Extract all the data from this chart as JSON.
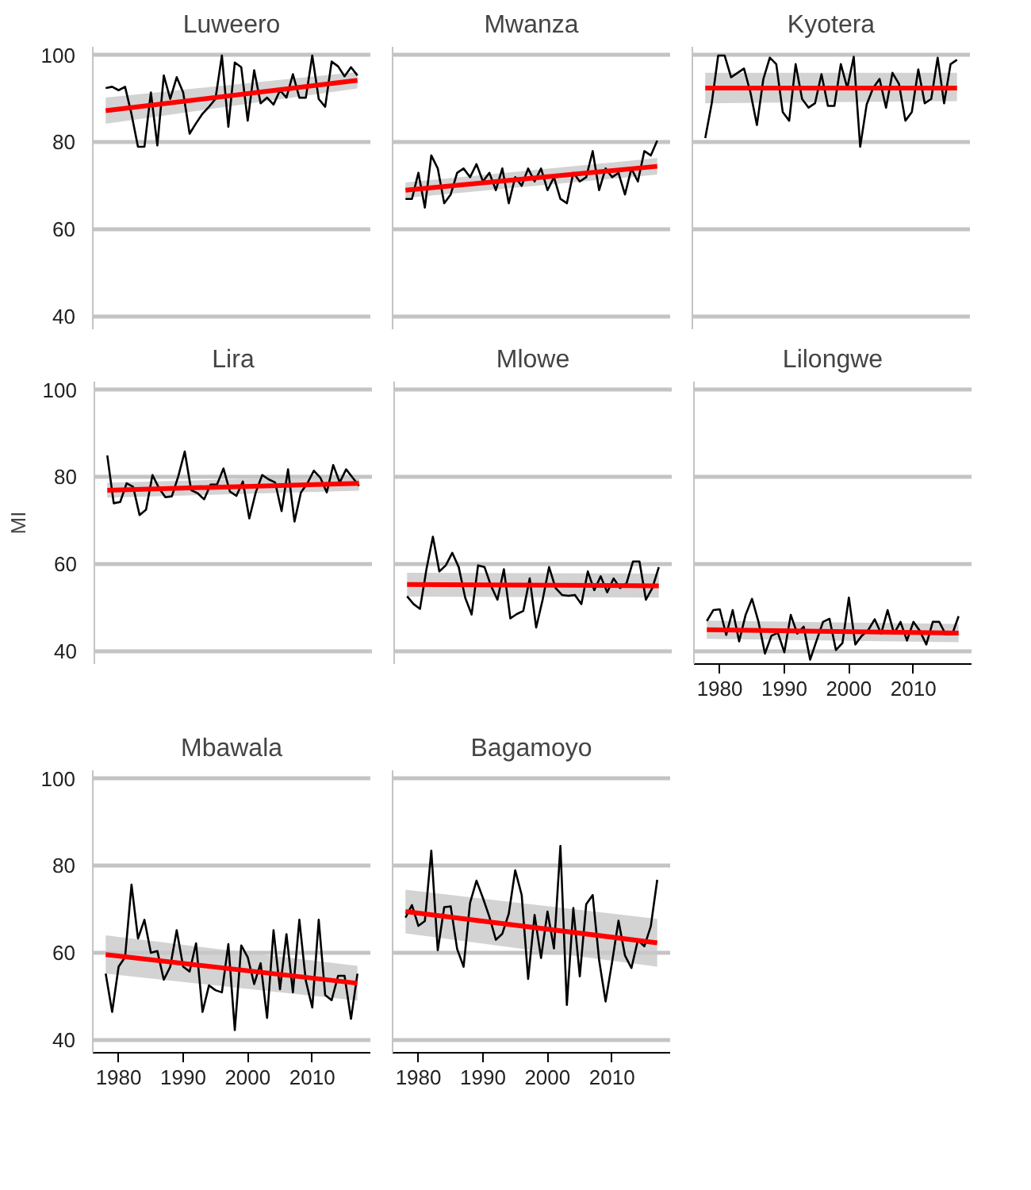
{
  "chart_data": [
    {
      "type": "line",
      "title": "Luweero",
      "xlim": [
        1976,
        2019
      ],
      "ylim": [
        37,
        102
      ],
      "xticks": [
        1980,
        1990,
        2000,
        2010
      ],
      "yticks": [
        40,
        60,
        80,
        100
      ],
      "grid": "y",
      "tick_labels": "y",
      "series": [
        {
          "color": "#000000",
          "x": [
            1978,
            1979,
            1980,
            1981,
            1982,
            1983,
            1984,
            1985,
            1986,
            1987,
            1988,
            1989,
            1990,
            1991,
            1992,
            1993,
            1994,
            1995,
            1996,
            1997,
            1998,
            1999,
            2000,
            2001,
            2002,
            2003,
            2004,
            2005,
            2006,
            2007,
            2008,
            2009,
            2010,
            2011,
            2012,
            2013,
            2014,
            2015,
            2016,
            2017
          ],
          "values": [
            92.5,
            92.8,
            92,
            92.8,
            86.5,
            79,
            79,
            91.5,
            79.3,
            95.4,
            90,
            95,
            91.5,
            82,
            84.4,
            86.6,
            88.2,
            90,
            100,
            83.6,
            98.4,
            97.3,
            85,
            96.6,
            89,
            90.3,
            88.7,
            92,
            90.3,
            95.7,
            90.3,
            90.3,
            100,
            90,
            88.2,
            98.6,
            97.5,
            95.2,
            97.3,
            95.4
          ]
        },
        {
          "color": "#ff0000",
          "x": [
            1978,
            2017
          ],
          "values": [
            87.3,
            94.3
          ],
          "lower": [
            84.3,
            92.4
          ],
          "upper": [
            90.3,
            96.2
          ]
        }
      ]
    },
    {
      "type": "line",
      "title": "Mwanza",
      "xlim": [
        1976,
        2019
      ],
      "ylim": [
        37,
        102
      ],
      "xticks": [
        1980,
        1990,
        2000,
        2010
      ],
      "yticks": [
        40,
        60,
        80,
        100
      ],
      "grid": "y",
      "tick_labels": false,
      "series": [
        {
          "color": "#000000",
          "x": [
            1978,
            1979,
            1980,
            1981,
            1982,
            1983,
            1984,
            1985,
            1986,
            1987,
            1988,
            1989,
            1990,
            1991,
            1992,
            1993,
            1994,
            1995,
            1996,
            1997,
            1998,
            1999,
            2000,
            2001,
            2002,
            2003,
            2004,
            2005,
            2006,
            2007,
            2008,
            2009,
            2010,
            2011,
            2012,
            2013,
            2014,
            2015,
            2016,
            2017
          ],
          "values": [
            67,
            67,
            73,
            65,
            77,
            74,
            66,
            68,
            73,
            74,
            72,
            75,
            71,
            73,
            69,
            74,
            66,
            72,
            70,
            74,
            71,
            74,
            69,
            72,
            67,
            66,
            73,
            71,
            72,
            78,
            69,
            74,
            72,
            73,
            68,
            74,
            71,
            78,
            77,
            80.4
          ]
        },
        {
          "color": "#ff0000",
          "x": [
            1978,
            2017
          ],
          "values": [
            69,
            74.5
          ],
          "lower": [
            67.2,
            72.6
          ],
          "upper": [
            70.8,
            76.4
          ]
        }
      ]
    },
    {
      "type": "line",
      "title": "Kyotera",
      "xlim": [
        1976,
        2019
      ],
      "ylim": [
        37,
        102
      ],
      "xticks": [
        1980,
        1990,
        2000,
        2010
      ],
      "yticks": [
        40,
        60,
        80,
        100
      ],
      "grid": "y",
      "tick_labels": false,
      "series": [
        {
          "color": "#000000",
          "x": [
            1978,
            1979,
            1980,
            1981,
            1982,
            1983,
            1984,
            1985,
            1986,
            1987,
            1988,
            1989,
            1990,
            1991,
            1992,
            1993,
            1994,
            1995,
            1996,
            1997,
            1998,
            1999,
            2000,
            2001,
            2002,
            2003,
            2004,
            2005,
            2006,
            2007,
            2008,
            2009,
            2010,
            2011,
            2012,
            2013,
            2014,
            2015,
            2016,
            2017
          ],
          "values": [
            81,
            89,
            100,
            100,
            95,
            96,
            97,
            91.5,
            84,
            94.6,
            99.5,
            98,
            87,
            85,
            98,
            90,
            88,
            89,
            95.7,
            88.4,
            88.4,
            98,
            92.5,
            99.7,
            79,
            88.7,
            92.5,
            94.6,
            88,
            96,
            93.5,
            85,
            87,
            96.8,
            89,
            90,
            99.5,
            89,
            98,
            99
          ]
        },
        {
          "color": "#ff0000",
          "x": [
            1978,
            2017
          ],
          "values": [
            92.5,
            92.5
          ],
          "lower": [
            89,
            89.5
          ],
          "upper": [
            96,
            96
          ]
        }
      ]
    },
    {
      "type": "line",
      "title": "Lira",
      "ylabel": "MI",
      "xlim": [
        1976,
        2019
      ],
      "ylim": [
        37,
        102
      ],
      "xticks": [
        1980,
        1990,
        2000,
        2010
      ],
      "yticks": [
        40,
        60,
        80,
        100
      ],
      "grid": "y",
      "tick_labels": "y",
      "series": [
        {
          "color": "#000000",
          "x": [
            1978,
            1979,
            1980,
            1981,
            1982,
            1983,
            1984,
            1985,
            1986,
            1987,
            1988,
            1989,
            1990,
            1991,
            1992,
            1993,
            1994,
            1995,
            1996,
            1997,
            1998,
            1999,
            2000,
            2001,
            2002,
            2003,
            2004,
            2005,
            2006,
            2007,
            2008,
            2009,
            2010,
            2011,
            2012,
            2013,
            2014,
            2015,
            2016,
            2017
          ],
          "values": [
            85,
            74,
            74.3,
            78.6,
            77.8,
            71.3,
            72.5,
            80.5,
            77.5,
            75.4,
            75.6,
            80.2,
            85.9,
            77,
            76.3,
            74.9,
            78.3,
            78.3,
            82,
            76.7,
            75.7,
            79,
            70.5,
            76.5,
            80.5,
            79.5,
            78.8,
            72.2,
            81.8,
            69.8,
            76.5,
            78.6,
            81.5,
            79.9,
            76.5,
            82.8,
            78.8,
            81.8,
            79.9,
            78
          ]
        },
        {
          "color": "#ff0000",
          "x": [
            1978,
            2017
          ],
          "values": [
            77,
            78.6
          ],
          "lower": [
            75.3,
            76.9
          ],
          "upper": [
            78.7,
            80.3
          ]
        }
      ]
    },
    {
      "type": "line",
      "title": "Mlowe",
      "xlim": [
        1976,
        2019
      ],
      "ylim": [
        37,
        102
      ],
      "xticks": [
        1980,
        1990,
        2000,
        2010
      ],
      "yticks": [
        40,
        60,
        80,
        100
      ],
      "grid": "y",
      "tick_labels": false,
      "series": [
        {
          "color": "#000000",
          "x": [
            1978,
            1979,
            1980,
            1981,
            1982,
            1983,
            1984,
            1985,
            1986,
            1987,
            1988,
            1989,
            1990,
            1991,
            1992,
            1993,
            1994,
            1995,
            1996,
            1997,
            1998,
            1999,
            2000,
            2001,
            2002,
            2003,
            2004,
            2005,
            2006,
            2007,
            2008,
            2009,
            2010,
            2011,
            2012,
            2013,
            2014,
            2015,
            2016,
            2017
          ],
          "values": [
            52.6,
            50.8,
            49.7,
            58.8,
            66.3,
            58.3,
            59.7,
            62.6,
            59.3,
            52.3,
            48.4,
            59.7,
            59.3,
            55,
            51.8,
            58.8,
            47.5,
            48.5,
            49.2,
            56.7,
            45.4,
            51.8,
            59.3,
            54.5,
            52.9,
            52.7,
            52.9,
            50.8,
            58.3,
            54,
            57.2,
            53.5,
            56.7,
            54.5,
            55.6,
            60.6,
            60.6,
            51.8,
            54.5,
            59.3
          ]
        },
        {
          "color": "#ff0000",
          "x": [
            1978,
            2017
          ],
          "values": [
            55.3,
            55
          ],
          "lower": [
            52.5,
            52.3
          ],
          "upper": [
            58,
            57.8
          ]
        }
      ]
    },
    {
      "type": "line",
      "title": "Lilongwe",
      "xlim": [
        1976,
        2019
      ],
      "ylim": [
        37,
        102
      ],
      "xticks": [
        1980,
        1990,
        2000,
        2010
      ],
      "yticks": [
        40,
        60,
        80,
        100
      ],
      "grid": "y",
      "tick_labels": "x",
      "series": [
        {
          "color": "#000000",
          "x": [
            1978,
            1979,
            1980,
            1981,
            1982,
            1983,
            1984,
            1985,
            1986,
            1987,
            1988,
            1989,
            1990,
            1991,
            1992,
            1993,
            1994,
            1995,
            1996,
            1997,
            1998,
            1999,
            2000,
            2001,
            2002,
            2003,
            2004,
            2005,
            2006,
            2007,
            2008,
            2009,
            2010,
            2011,
            2012,
            2013,
            2014,
            2015,
            2016,
            2017
          ],
          "values": [
            46.9,
            49.4,
            49.6,
            43.7,
            49.4,
            42.2,
            48.3,
            52,
            46.7,
            39.4,
            43.5,
            44.2,
            39.7,
            48.3,
            44,
            45.6,
            38,
            42.4,
            46.7,
            47.4,
            40.2,
            41.8,
            52.3,
            41.5,
            43.5,
            44.8,
            47.3,
            44,
            49.4,
            44,
            46.7,
            42.4,
            46.7,
            44.6,
            41.5,
            46.7,
            46.7,
            43.8,
            43.8,
            48
          ]
        },
        {
          "color": "#ff0000",
          "x": [
            1978,
            2017
          ],
          "values": [
            44.9,
            44.1
          ],
          "lower": [
            42.8,
            42
          ],
          "upper": [
            47,
            46.2
          ]
        }
      ]
    },
    {
      "type": "line",
      "title": "Mbawala",
      "xlim": [
        1976,
        2019
      ],
      "ylim": [
        37,
        102
      ],
      "xticks": [
        1980,
        1990,
        2000,
        2010
      ],
      "yticks": [
        40,
        60,
        80,
        100
      ],
      "grid": "y",
      "series": [
        {
          "color": "#000000",
          "x": [
            1978,
            1979,
            1980,
            1981,
            1982,
            1983,
            1984,
            1985,
            1986,
            1987,
            1988,
            1989,
            1990,
            1991,
            1992,
            1993,
            1994,
            1995,
            1996,
            1997,
            1998,
            1999,
            2000,
            2001,
            2002,
            2003,
            2004,
            2005,
            2006,
            2007,
            2008,
            2009,
            2010,
            2011,
            2012,
            2013,
            2014,
            2015,
            2016,
            2017
          ],
          "values": [
            55.2,
            46.4,
            56.8,
            59,
            75.7,
            63.3,
            67.6,
            60,
            60.4,
            53.8,
            56.8,
            65.2,
            56.8,
            55.7,
            62.2,
            46.4,
            52.5,
            51.4,
            50.9,
            62,
            42.2,
            61.7,
            59,
            52.8,
            57.6,
            45,
            65.2,
            51.6,
            64.3,
            50.9,
            67.6,
            53.6,
            47.4,
            67.6,
            50.3,
            49.1,
            54.7,
            54.7,
            44.8,
            55.2
          ]
        },
        {
          "color": "#ff0000",
          "x": [
            1978,
            2017
          ],
          "values": [
            59.6,
            53
          ],
          "lower": [
            55.2,
            49
          ],
          "upper": [
            64,
            57
          ]
        }
      ]
    },
    {
      "type": "line",
      "title": "Bagamoyo",
      "xlim": [
        1976,
        2019
      ],
      "ylim": [
        37,
        102
      ],
      "xticks": [
        1980,
        1990,
        2000,
        2010
      ],
      "yticks": [
        40,
        60,
        80,
        100
      ],
      "grid": "y",
      "tick_labels": "x",
      "series": [
        {
          "color": "#000000",
          "x": [
            1978,
            1979,
            1980,
            1981,
            1982,
            1983,
            1984,
            1985,
            1986,
            1987,
            1988,
            1989,
            1990,
            1991,
            1992,
            1993,
            1994,
            1995,
            1996,
            1997,
            1998,
            1999,
            2000,
            2001,
            2002,
            2003,
            2004,
            2005,
            2006,
            2007,
            2008,
            2009,
            2010,
            2011,
            2012,
            2013,
            2014,
            2015,
            2016,
            2017
          ],
          "values": [
            68.1,
            71,
            66.2,
            67.3,
            83.5,
            60.6,
            70.5,
            70.7,
            60.9,
            56.8,
            71.5,
            76.6,
            72.6,
            68.3,
            63,
            64.4,
            69,
            79,
            73.3,
            54,
            68.7,
            58.8,
            69.5,
            61,
            84.6,
            48,
            70.3,
            54.6,
            71.2,
            73.3,
            58.3,
            48.8,
            57.8,
            67.4,
            59.4,
            56.5,
            62.9,
            61.5,
            66.1,
            76.8
          ]
        },
        {
          "color": "#ff0000",
          "x": [
            1978,
            2017
          ],
          "values": [
            69.5,
            62.3
          ],
          "lower": [
            64.5,
            56.8
          ],
          "upper": [
            74.5,
            67.8
          ]
        }
      ]
    }
  ]
}
